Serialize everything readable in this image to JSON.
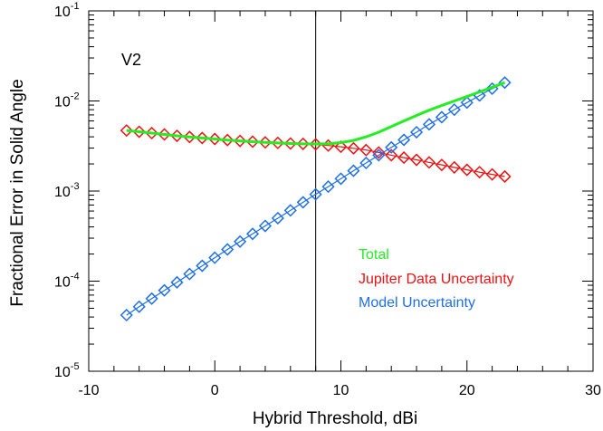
{
  "chart_data": {
    "type": "line",
    "title": "",
    "panel_label": "V2",
    "xlabel": "Hybrid Threshold, dBi",
    "ylabel": "Fractional Error in Solid Angle",
    "xlim": [
      -10,
      30
    ],
    "ylim": [
      1e-05,
      0.1
    ],
    "yscale": "log",
    "grid": false,
    "legend_position": "lower-right",
    "x_ticks": [
      "-10",
      "0",
      "10",
      "20",
      "30"
    ],
    "x_tick_values": [
      -10,
      0,
      10,
      20,
      30
    ],
    "y_ticks": [
      {
        "base": "10",
        "exp": "-5",
        "value": 1e-05
      },
      {
        "base": "10",
        "exp": "-4",
        "value": 0.0001
      },
      {
        "base": "10",
        "exp": "-3",
        "value": 0.001
      },
      {
        "base": "10",
        "exp": "-2",
        "value": 0.01
      },
      {
        "base": "10",
        "exp": "-1",
        "value": 0.1
      }
    ],
    "vertical_line_x": 8,
    "x": [
      -7,
      -6,
      -5,
      -4,
      -3,
      -2,
      -1,
      0,
      1,
      2,
      3,
      4,
      5,
      6,
      7,
      8,
      9,
      10,
      11,
      12,
      13,
      14,
      15,
      16,
      17,
      18,
      19,
      20,
      21,
      22,
      23
    ],
    "series": [
      {
        "name": "Total",
        "color": "#22ee22",
        "style": "line",
        "values": [
          0.0047,
          0.00455,
          0.0044,
          0.00425,
          0.0041,
          0.00398,
          0.00388,
          0.00378,
          0.00368,
          0.0036,
          0.00353,
          0.00347,
          0.00342,
          0.00337,
          0.00334,
          0.00333,
          0.00335,
          0.00345,
          0.00365,
          0.004,
          0.0045,
          0.0052,
          0.006,
          0.0069,
          0.0079,
          0.0089,
          0.01,
          0.0112,
          0.0126,
          0.0142,
          0.016
        ]
      },
      {
        "name": "Jupiter Data Uncertainty",
        "color": "#ee1111",
        "style": "diamond",
        "values": [
          0.0047,
          0.00455,
          0.0044,
          0.00425,
          0.0041,
          0.00398,
          0.00388,
          0.00378,
          0.00368,
          0.0036,
          0.00353,
          0.00347,
          0.00342,
          0.00337,
          0.00334,
          0.0033,
          0.0032,
          0.0031,
          0.00298,
          0.00285,
          0.00268,
          0.0025,
          0.00235,
          0.00222,
          0.00208,
          0.00195,
          0.00183,
          0.00172,
          0.00162,
          0.00153,
          0.00145
        ]
      },
      {
        "name": "Model Uncertainty",
        "color": "#1f6fe6",
        "style": "diamond",
        "values": [
          4.2e-05,
          5.2e-05,
          6.4e-05,
          7.9e-05,
          9.7e-05,
          0.00012,
          0.000148,
          0.000182,
          0.000225,
          0.000275,
          0.000335,
          0.00041,
          0.0005,
          0.00061,
          0.00075,
          0.00092,
          0.00112,
          0.00137,
          0.00168,
          0.00205,
          0.0025,
          0.00305,
          0.0037,
          0.0045,
          0.0055,
          0.0066,
          0.008,
          0.0096,
          0.0115,
          0.0137,
          0.016
        ]
      }
    ]
  }
}
